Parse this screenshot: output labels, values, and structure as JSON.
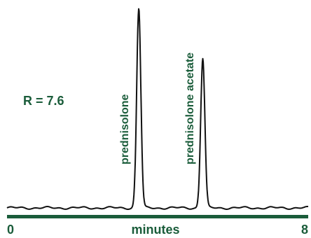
{
  "chart_data": {
    "type": "line",
    "title": "",
    "xlabel": "minutes",
    "ylabel": "",
    "xlim": [
      0,
      8
    ],
    "x_tick_labels": [
      "0",
      "8"
    ],
    "annotations": {
      "resolution": "R = 7.6"
    },
    "peaks": [
      {
        "label": "prednisolone",
        "retention_min": 3.5,
        "relative_height": 1.0
      },
      {
        "label": "prednisolone acetate",
        "retention_min": 5.2,
        "relative_height": 0.75
      }
    ],
    "grid": false,
    "legend": "none"
  },
  "colors": {
    "trace": "#111111",
    "axis": "#1a5c3a",
    "text": "#1a5c3a"
  }
}
